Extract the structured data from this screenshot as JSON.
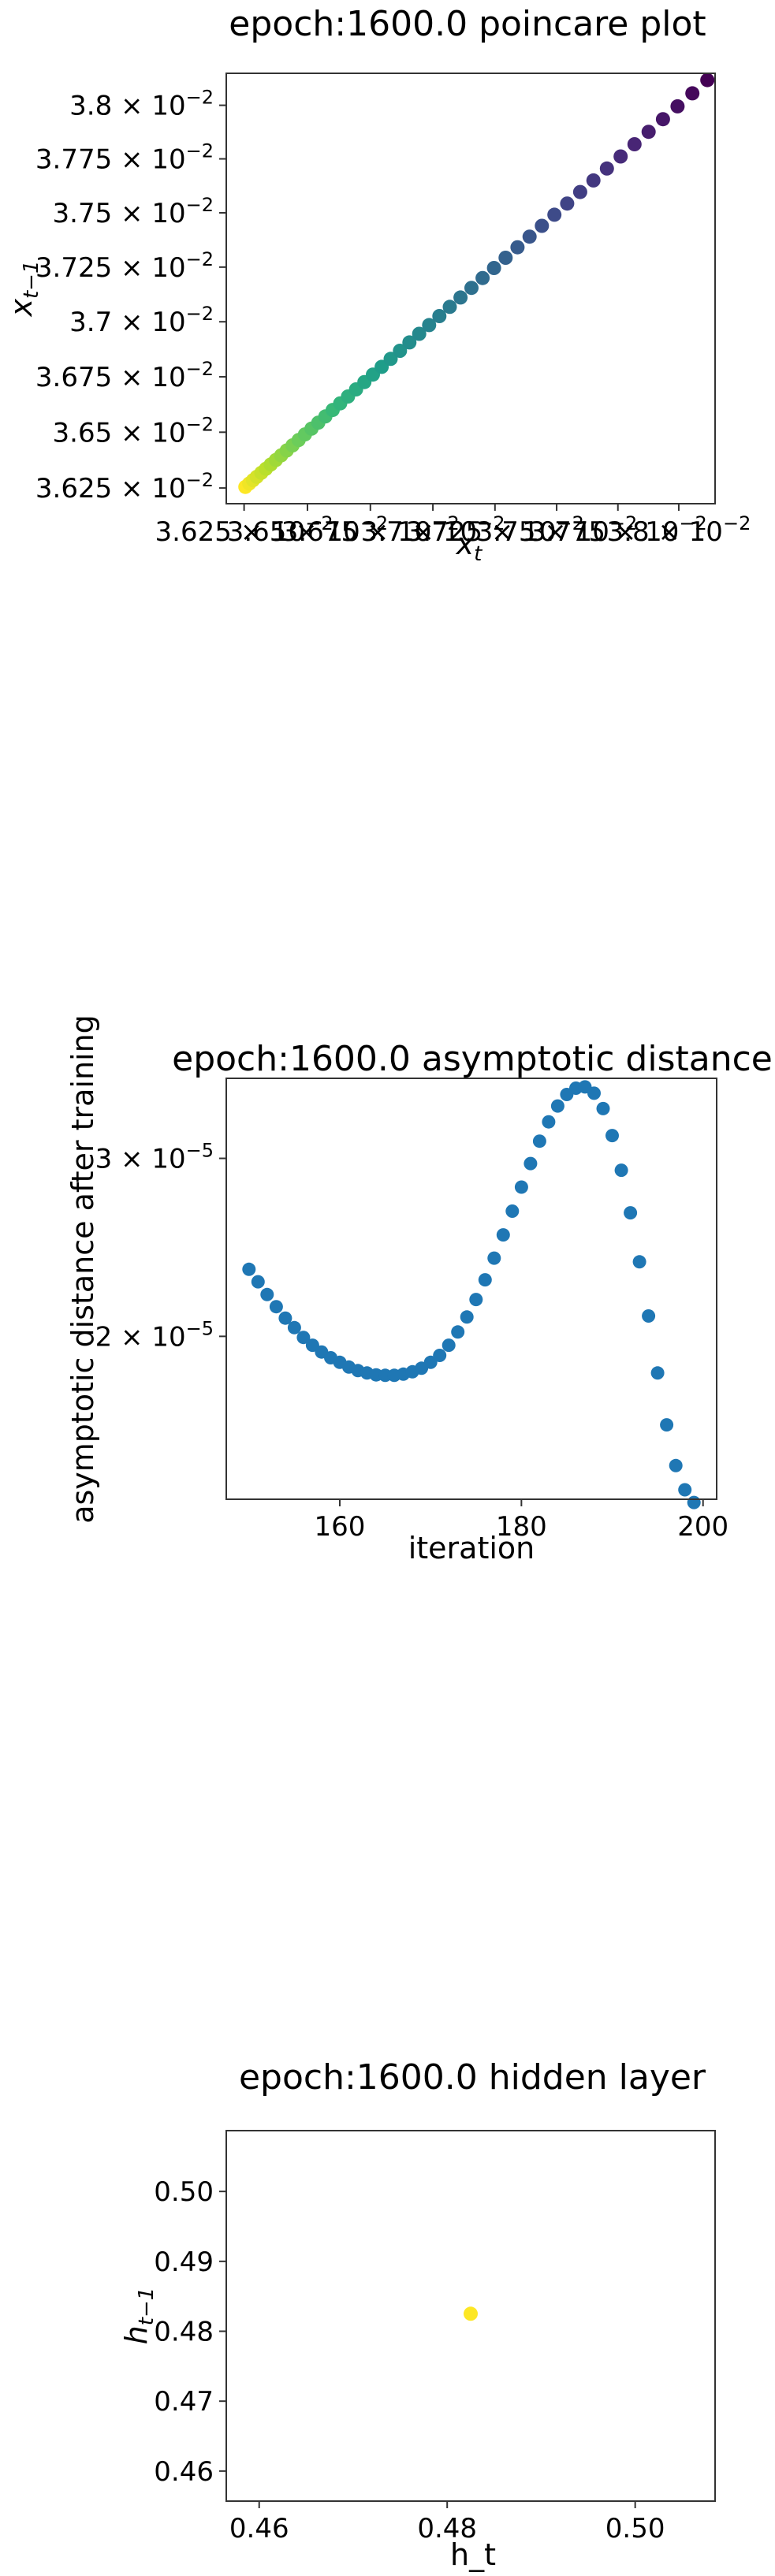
{
  "chart_data": [
    {
      "type": "scatter",
      "title": "epoch:1600.0 poincare plot",
      "xlabel": "x_t",
      "ylabel": "x_{t−1}",
      "scale": "log",
      "xlim": [
        0.03618,
        0.03815
      ],
      "ylim": [
        0.03618,
        0.03815
      ],
      "colormap": "viridis",
      "x_ticks": [
        "3.625 × 10^-2",
        "3.65 × 10^-2",
        "3.675 × 10^-2",
        "3.7 × 10^-2",
        "3.725 × 10^-2",
        "3.75 × 10^-2",
        "3.775 × 10^-2",
        "3.8 × 10^-2"
      ],
      "y_ticks": [
        {
          "mant": "3.8",
          "exp": "−2",
          "v": 0.038
        },
        {
          "mant": "3.775",
          "exp": "−2",
          "v": 0.03775
        },
        {
          "mant": "3.75",
          "exp": "−2",
          "v": 0.0375
        },
        {
          "mant": "3.725",
          "exp": "−2",
          "v": 0.03725
        },
        {
          "mant": "3.7",
          "exp": "−2",
          "v": 0.037
        },
        {
          "mant": "3.675",
          "exp": "−2",
          "v": 0.03675
        },
        {
          "mant": "3.65",
          "exp": "−2",
          "v": 0.0365
        },
        {
          "mant": "3.625",
          "exp": "−2",
          "v": 0.03625
        }
      ],
      "x_tick_values": [
        0.03625,
        0.0365,
        0.03675,
        0.037,
        0.03725,
        0.0375,
        0.03775,
        0.038
      ],
      "x": [
        0.036255,
        0.03627,
        0.036285,
        0.0363,
        0.036318,
        0.036336,
        0.036355,
        0.036375,
        0.036396,
        0.036418,
        0.036441,
        0.036465,
        0.03649,
        0.036516,
        0.036543,
        0.036571,
        0.0366,
        0.03663,
        0.036661,
        0.036693,
        0.036726,
        0.03676,
        0.036795,
        0.036831,
        0.036868,
        0.036906,
        0.036945,
        0.036985,
        0.037026,
        0.037068,
        0.037111,
        0.037155,
        0.0372,
        0.037246,
        0.037293,
        0.037341,
        0.03739,
        0.03744,
        0.037491,
        0.037543,
        0.037596,
        0.03765,
        0.037705,
        0.037761,
        0.037818,
        0.037876,
        0.037935,
        0.037995,
        0.038056,
        0.038118
      ],
      "y": [
        0.036255,
        0.03627,
        0.036285,
        0.0363,
        0.036318,
        0.036336,
        0.036355,
        0.036375,
        0.036396,
        0.036418,
        0.036441,
        0.036465,
        0.03649,
        0.036516,
        0.036543,
        0.036571,
        0.0366,
        0.03663,
        0.036661,
        0.036693,
        0.036726,
        0.03676,
        0.036795,
        0.036831,
        0.036868,
        0.036906,
        0.036945,
        0.036985,
        0.037026,
        0.037068,
        0.037111,
        0.037155,
        0.0372,
        0.037246,
        0.037293,
        0.037341,
        0.03739,
        0.03744,
        0.037491,
        0.037543,
        0.037596,
        0.03765,
        0.037705,
        0.037761,
        0.037818,
        0.037876,
        0.037935,
        0.037995,
        0.038056,
        0.038118
      ]
    },
    {
      "type": "scatter",
      "title": "epoch:1600.0 asymptotic distance",
      "xlabel": "iteration",
      "ylabel": "asymptotic distance after training",
      "yscale": "log",
      "xlim": [
        147.5,
        201.5
      ],
      "ylim": [
        1.38e-05,
        3.6e-05
      ],
      "color": "#1f77b4",
      "x_ticks": [
        160,
        180,
        200
      ],
      "y_ticks": [
        {
          "mant": "2",
          "exp": "−5",
          "v": 2e-05
        },
        {
          "mant": "3",
          "exp": "−5",
          "v": 3e-05
        }
      ],
      "x": [
        150,
        151,
        152,
        153,
        154,
        155,
        156,
        157,
        158,
        159,
        160,
        161,
        162,
        163,
        164,
        165,
        166,
        167,
        168,
        169,
        170,
        171,
        172,
        173,
        174,
        175,
        176,
        177,
        178,
        179,
        180,
        181,
        182,
        183,
        184,
        185,
        186,
        187,
        188,
        189,
        190,
        191,
        192,
        193,
        194,
        195,
        196,
        197,
        198,
        199
      ],
      "y": [
        2.33e-05,
        2.265e-05,
        2.2e-05,
        2.14e-05,
        2.085e-05,
        2.04e-05,
        1.995e-05,
        1.96e-05,
        1.93e-05,
        1.905e-05,
        1.885e-05,
        1.865e-05,
        1.85e-05,
        1.84e-05,
        1.832e-05,
        1.83e-05,
        1.83e-05,
        1.835e-05,
        1.845e-05,
        1.86e-05,
        1.885e-05,
        1.915e-05,
        1.96e-05,
        2.02e-05,
        2.09e-05,
        2.175e-05,
        2.275e-05,
        2.39e-05,
        2.52e-05,
        2.66e-05,
        2.81e-05,
        2.965e-05,
        3.12e-05,
        3.26e-05,
        3.38e-05,
        3.47e-05,
        3.52e-05,
        3.53e-05,
        3.48e-05,
        3.36e-05,
        3.16e-05,
        2.92e-05,
        2.65e-05,
        2.37e-05,
        2.095e-05,
        1.84e-05,
        1.635e-05,
        1.49e-05,
        1.41e-05,
        1.37e-05
      ]
    },
    {
      "type": "scatter",
      "title": "epoch:1600.0 hidden layer",
      "xlabel": "h_t",
      "ylabel": "h_{t−1}",
      "xlim": [
        0.4565,
        0.5085
      ],
      "ylim": [
        0.4557,
        0.5087
      ],
      "color": "#fde725",
      "x_ticks": [
        0.46,
        0.48,
        0.5
      ],
      "x_tick_labels": [
        "0.46",
        "0.48",
        "0.50"
      ],
      "y_ticks": [
        0.46,
        0.47,
        0.48,
        0.49,
        0.5
      ],
      "y_tick_labels": [
        "0.46",
        "0.47",
        "0.48",
        "0.49",
        "0.50"
      ],
      "x": [
        0.4825
      ],
      "y": [
        0.4825
      ]
    }
  ]
}
